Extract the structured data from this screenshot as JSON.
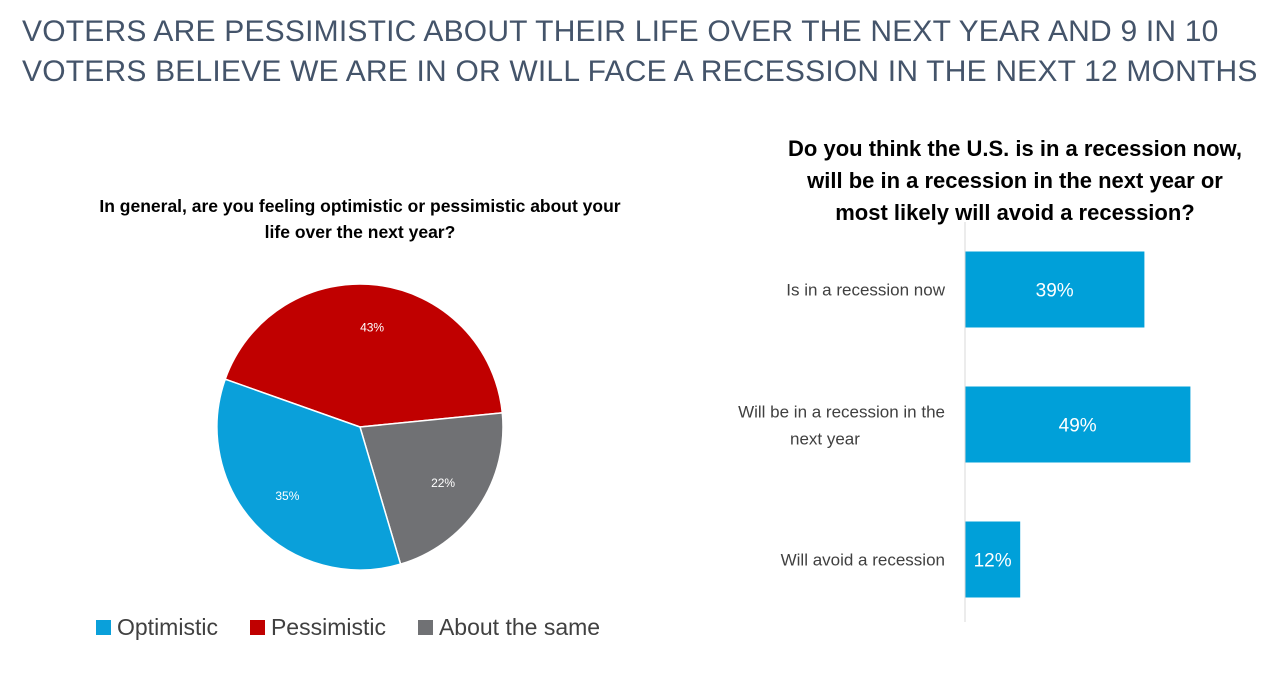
{
  "headline": {
    "line1": "VOTERS ARE PESSIMISTIC ABOUT THEIR LIFE OVER THE NEXT YEAR AND 9 IN 10",
    "line2": "VOTERS BELIEVE WE ARE IN OR WILL FACE A RECESSION IN THE NEXT 12 MONTHS"
  },
  "chart_data": [
    {
      "type": "pie",
      "title_line1": "In general, are you feeling optimistic or pessimistic about your",
      "title_line2": "life over the next year?",
      "slices": [
        {
          "label": "Pessimistic",
          "value": 43,
          "display": "43%",
          "color": "#c00000"
        },
        {
          "label": "About the same",
          "value": 22,
          "display": "22%",
          "color": "#707174"
        },
        {
          "label": "Optimistic",
          "value": 35,
          "display": "35%",
          "color": "#0aa0da"
        }
      ],
      "legend": [
        {
          "label": "Optimistic",
          "color": "#0aa0da"
        },
        {
          "label": "Pessimistic",
          "color": "#c00000"
        },
        {
          "label": "About the same",
          "color": "#707174"
        }
      ],
      "legend_position": "bottom"
    },
    {
      "type": "bar",
      "orientation": "horizontal",
      "title_line1": "Do you think the U.S. is in a recession now,",
      "title_line2": "will be in a recession in the next year or",
      "title_line3": "most likely will avoid a recession?",
      "categories": [
        {
          "line1": "Is in a recession now",
          "line2": ""
        },
        {
          "line1": "Will be in a recession in the",
          "line2": "next year"
        },
        {
          "line1": "Will avoid a recession",
          "line2": ""
        }
      ],
      "values": [
        39,
        49,
        12
      ],
      "data_labels": [
        "39%",
        "49%",
        "12%"
      ],
      "xlim": [
        0,
        100
      ],
      "color": "#00a0d9",
      "grid": false
    }
  ]
}
